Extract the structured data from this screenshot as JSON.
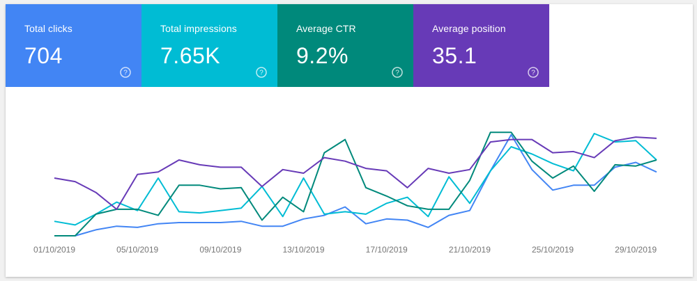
{
  "metrics": [
    {
      "label": "Total clicks",
      "value": "704",
      "color": "#4285f4"
    },
    {
      "label": "Total impressions",
      "value": "7.65K",
      "color": "#00bcd4"
    },
    {
      "label": "Average CTR",
      "value": "9.2%",
      "color": "#00897b"
    },
    {
      "label": "Average position",
      "value": "35.1",
      "color": "#673ab7"
    }
  ],
  "chart_data": {
    "type": "line",
    "x": [
      "01/10/2019",
      "02/10/2019",
      "03/10/2019",
      "04/10/2019",
      "05/10/2019",
      "06/10/2019",
      "07/10/2019",
      "08/10/2019",
      "09/10/2019",
      "10/10/2019",
      "11/10/2019",
      "12/10/2019",
      "13/10/2019",
      "14/10/2019",
      "15/10/2019",
      "16/10/2019",
      "17/10/2019",
      "18/10/2019",
      "19/10/2019",
      "20/10/2019",
      "21/10/2019",
      "22/10/2019",
      "23/10/2019",
      "24/10/2019",
      "25/10/2019",
      "26/10/2019",
      "27/10/2019",
      "28/10/2019",
      "29/10/2019",
      "30/10/2019"
    ],
    "tick_labels": [
      "01/10/2019",
      "05/10/2019",
      "09/10/2019",
      "13/10/2019",
      "17/10/2019",
      "21/10/2019",
      "25/10/2019",
      "29/10/2019"
    ],
    "ylim": [
      0,
      100
    ],
    "grid": false,
    "legend": "none",
    "series": [
      {
        "name": "Total clicks",
        "color": "#4285f4",
        "values": [
          0,
          0,
          5,
          8,
          7,
          10,
          11,
          11,
          11,
          12,
          8,
          8,
          14,
          17,
          24,
          10,
          14,
          13,
          7,
          17,
          21,
          54,
          84,
          55,
          38,
          42,
          42,
          57,
          61,
          53
        ]
      },
      {
        "name": "Total impressions",
        "color": "#00bcd4",
        "values": [
          12,
          9,
          18,
          28,
          21,
          48,
          20,
          19,
          21,
          23,
          41,
          16,
          48,
          18,
          20,
          18,
          27,
          32,
          16,
          49,
          27,
          54,
          74,
          68,
          60,
          54,
          85,
          78,
          79,
          63
        ]
      },
      {
        "name": "Average CTR",
        "color": "#00897b",
        "values": [
          0,
          0,
          18,
          22,
          22,
          17,
          42,
          42,
          39,
          40,
          13,
          32,
          20,
          69,
          80,
          40,
          33,
          25,
          22,
          22,
          46,
          86,
          86,
          62,
          48,
          58,
          37,
          59,
          58,
          63
        ]
      },
      {
        "name": "Average position",
        "color": "#673ab7",
        "values": [
          48,
          45,
          36,
          22,
          51,
          53,
          63,
          59,
          57,
          57,
          41,
          55,
          52,
          65,
          62,
          56,
          54,
          40,
          56,
          52,
          55,
          78,
          80,
          80,
          69,
          70,
          65,
          79,
          82,
          81
        ]
      }
    ]
  }
}
